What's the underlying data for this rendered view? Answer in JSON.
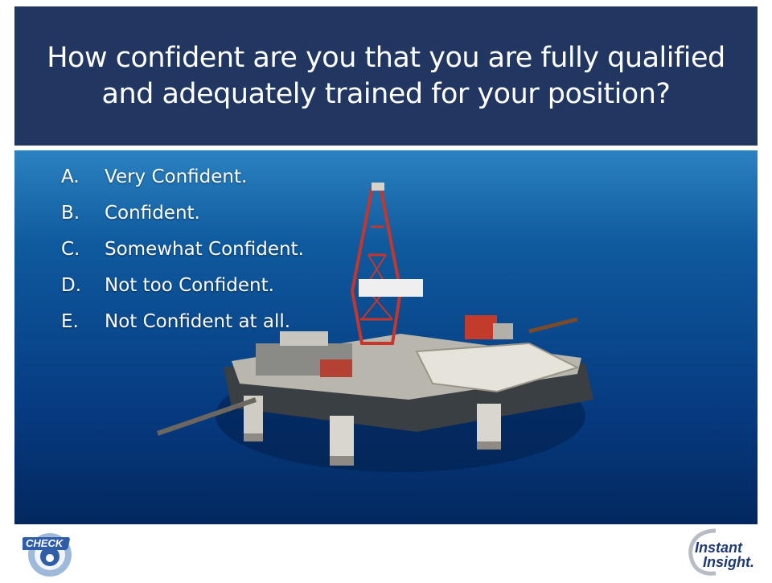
{
  "question": {
    "title_line1": "How confident are you that you are fully qualified",
    "title_line2": "and adequately trained for your position?"
  },
  "answers": [
    {
      "letter": "A.",
      "text": "Very Confident."
    },
    {
      "letter": "B.",
      "text": "Confident."
    },
    {
      "letter": "C.",
      "text": "Somewhat Confident."
    },
    {
      "letter": "D.",
      "text": "Not too Confident."
    },
    {
      "letter": "E.",
      "text": "Not Confident at all."
    }
  ],
  "logos": {
    "left": "CHECK",
    "right_line1": "Instant",
    "right_line2": "Insight."
  },
  "colors": {
    "header_bg": "#213762",
    "sea": "#0b4f92",
    "logo_blue": "#1f3a73"
  },
  "icons": {
    "left_logo": "check-6-logo-icon",
    "right_logo": "instant-insight-logo-icon",
    "background": "oil-rig-photo"
  }
}
